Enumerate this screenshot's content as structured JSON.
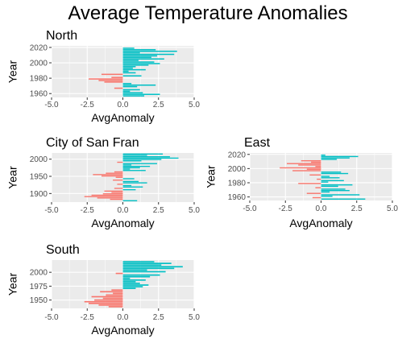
{
  "chart_data": {
    "type": "bar",
    "title": "Average Temperature Anomalies",
    "colors": {
      "positive": "#00BFC4",
      "negative": "#F8766D",
      "panel_bg": "#EBEBEB",
      "grid": "#FFFFFF"
    },
    "panels": [
      {
        "title": "North",
        "xlabel": "AvgAnomaly",
        "ylabel": "Year",
        "xlim": [
          -5,
          5
        ],
        "ylim": [
          1955,
          2022
        ],
        "xticks": [
          "-5.0",
          "-2.5",
          "0.0",
          "2.5",
          "5.0"
        ],
        "xtick_values": [
          -5,
          -2.5,
          0,
          2.5,
          5
        ],
        "yticks": [
          "1960",
          "1980",
          "2000",
          "2020"
        ],
        "ytick_values": [
          1960,
          1980,
          2000,
          2020
        ],
        "years": [
          1957,
          1959,
          1961,
          1963,
          1965,
          1967,
          1969,
          1971,
          1973,
          1975,
          1977,
          1979,
          1981,
          1983,
          1985,
          1987,
          1989,
          1991,
          1993,
          1995,
          1997,
          1999,
          2001,
          2003,
          2005,
          2007,
          2009,
          2011,
          2013,
          2015,
          2017,
          2019
        ],
        "values": [
          1.5,
          2.6,
          1.4,
          0.5,
          1.2,
          -0.6,
          1.0,
          2.3,
          0.6,
          -1.3,
          -1.7,
          -2.4,
          -0.8,
          1.3,
          -1.5,
          0.9,
          0.4,
          1.6,
          0.7,
          0.9,
          1.8,
          2.6,
          2.2,
          1.1,
          2.9,
          2.0,
          2.4,
          3.6,
          1.2,
          3.8,
          2.3,
          0.8
        ]
      },
      {
        "title": "City of San Fran",
        "xlabel": "AvgAnomaly",
        "ylabel": "Year",
        "xlim": [
          -5,
          5
        ],
        "ylim": [
          1875,
          2018
        ],
        "xticks": [
          "-5.0",
          "-2.5",
          "0.0",
          "2.5",
          "5.0"
        ],
        "xtick_values": [
          -5,
          -2.5,
          0,
          2.5,
          5
        ],
        "yticks": [
          "1900",
          "1950",
          "2000"
        ],
        "ytick_values": [
          1900,
          1950,
          2000
        ],
        "years": [
          1879,
          1883,
          1887,
          1891,
          1895,
          1899,
          1903,
          1907,
          1911,
          1915,
          1919,
          1923,
          1927,
          1931,
          1935,
          1939,
          1943,
          1947,
          1951,
          1955,
          1959,
          1963,
          1967,
          1971,
          1975,
          1979,
          1983,
          1987,
          1991,
          1995,
          1999,
          2003,
          2007,
          2011,
          2015
        ],
        "values": [
          1.0,
          -0.9,
          -1.8,
          -2.7,
          -2.2,
          -1.4,
          -0.8,
          -1.3,
          0.9,
          -0.6,
          1.4,
          0.6,
          -0.4,
          1.7,
          1.1,
          -0.7,
          0.8,
          -0.5,
          -1.5,
          -2.1,
          -1.2,
          -0.6,
          1.6,
          0.5,
          1.2,
          1.9,
          0.6,
          2.4,
          -0.4,
          1.3,
          2.7,
          3.9,
          3.3,
          1.7,
          2.8
        ]
      },
      {
        "title": "East",
        "xlabel": "AvgAnomaly",
        "ylabel": "Year",
        "xlim": [
          -5,
          5
        ],
        "ylim": [
          1955,
          2022
        ],
        "xticks": [
          "-5.0",
          "-2.5",
          "0.0",
          "2.5",
          "5.0"
        ],
        "xtick_values": [
          -5,
          -2.5,
          0,
          2.5,
          5
        ],
        "yticks": [
          "1960",
          "1980",
          "2000",
          "2020"
        ],
        "ytick_values": [
          1960,
          1980,
          2000,
          2020
        ],
        "years": [
          1957,
          1959,
          1961,
          1963,
          1965,
          1967,
          1969,
          1971,
          1973,
          1975,
          1977,
          1979,
          1981,
          1983,
          1985,
          1987,
          1989,
          1991,
          1993,
          1995,
          1997,
          1999,
          2001,
          2003,
          2005,
          2007,
          2009,
          2011,
          2013,
          2015,
          2017,
          2019
        ],
        "values": [
          3.1,
          -0.6,
          0.8,
          2.7,
          -1.0,
          0.6,
          2.0,
          1.7,
          -0.4,
          1.2,
          2.2,
          -1.6,
          0.5,
          1.6,
          -0.3,
          1.3,
          0.6,
          -0.8,
          1.9,
          1.4,
          -2.0,
          -1.0,
          -2.9,
          -0.4,
          -1.6,
          -2.4,
          -0.7,
          -1.4,
          1.1,
          2.0,
          2.6,
          0.3
        ]
      },
      {
        "title": "South",
        "xlabel": "AvgAnomaly",
        "ylabel": "Year",
        "xlim": [
          -5,
          5
        ],
        "ylim": [
          1935,
          2022
        ],
        "xticks": [
          "-5.0",
          "-2.5",
          "0.0",
          "2.5",
          "5.0"
        ],
        "xtick_values": [
          -5,
          -2.5,
          0,
          2.5,
          5
        ],
        "yticks": [
          "1950",
          "1975",
          "2000"
        ],
        "ytick_values": [
          1950,
          1975,
          2000
        ],
        "years": [
          1938,
          1941,
          1944,
          1947,
          1950,
          1953,
          1956,
          1959,
          1962,
          1965,
          1968,
          1971,
          1974,
          1977,
          1980,
          1983,
          1986,
          1989,
          1992,
          1995,
          1998,
          2001,
          2004,
          2007,
          2010,
          2013,
          2016,
          2019
        ],
        "values": [
          -1.0,
          -1.7,
          -2.4,
          -2.7,
          -2.0,
          -1.4,
          -2.2,
          -1.2,
          -0.7,
          -1.6,
          -0.8,
          0.9,
          1.4,
          1.8,
          1.2,
          0.9,
          1.6,
          0.5,
          1.9,
          2.6,
          -0.5,
          3.0,
          1.7,
          3.6,
          4.2,
          2.7,
          3.4,
          2.2
        ]
      }
    ]
  }
}
